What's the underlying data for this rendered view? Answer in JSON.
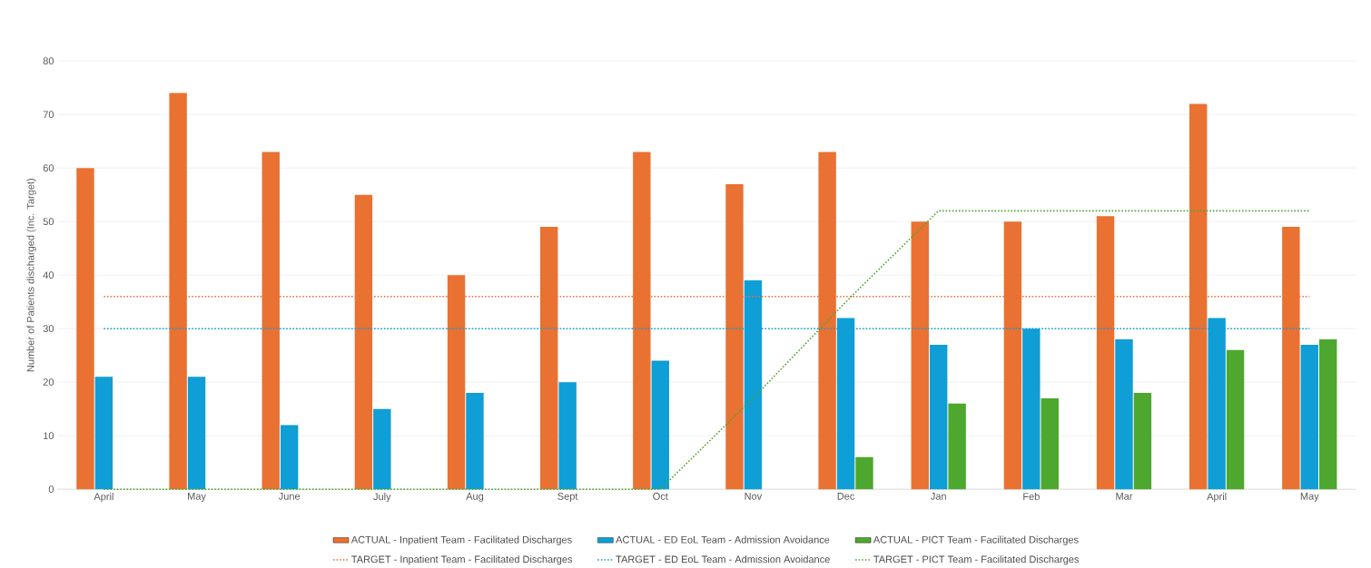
{
  "chart_data": {
    "type": "bar",
    "ylabel": "Number of Patients discharged (Inc. Target)",
    "categories": [
      "April",
      "May",
      "June",
      "July",
      "Aug",
      "Sept",
      "Oct",
      "Nov",
      "Dec",
      "Jan",
      "Feb",
      "Mar",
      "April",
      "May"
    ],
    "ylim": [
      0,
      80
    ],
    "yticks": [
      0,
      10,
      20,
      30,
      40,
      50,
      60,
      70,
      80
    ],
    "grid": "y",
    "legend": "bottom",
    "series": [
      {
        "name": "ACTUAL - Inpatient Team - Facilitated Discharges",
        "color": "#e97132",
        "values": [
          60,
          74,
          63,
          55,
          40,
          49,
          63,
          57,
          63,
          50,
          50,
          51,
          72,
          49
        ]
      },
      {
        "name": "ACTUAL - ED EoL Team - Admission Avoidance",
        "color": "#0f9ed5",
        "values": [
          21,
          21,
          12,
          15,
          18,
          20,
          24,
          39,
          32,
          27,
          30,
          28,
          32,
          27
        ]
      },
      {
        "name": "ACTUAL - PICT Team - Facilitated Discharges",
        "color": "#4ea72e",
        "values": [
          null,
          null,
          null,
          null,
          null,
          null,
          null,
          null,
          6,
          16,
          17,
          18,
          26,
          28
        ]
      },
      {
        "name": "TARGET - Inpatient Team - Facilitated Discharges",
        "type": "line",
        "line_style": "dotted",
        "color": "#e97132",
        "values": [
          36,
          36,
          36,
          36,
          36,
          36,
          36,
          36,
          36,
          36,
          36,
          36,
          36,
          36
        ]
      },
      {
        "name": "TARGET - ED EoL Team - Admission Avoidance",
        "type": "line",
        "line_style": "dotted",
        "color": "#0f9ed5",
        "values": [
          30,
          30,
          30,
          30,
          30,
          30,
          30,
          30,
          30,
          30,
          30,
          30,
          30,
          30
        ]
      },
      {
        "name": "TARGET - PICT Team - Facilitated Discharges",
        "type": "line",
        "line_style": "dotted",
        "color": "#4ea72e",
        "values": [
          0,
          0,
          0,
          0,
          0,
          0,
          0,
          17,
          35,
          52,
          52,
          52,
          52,
          52
        ]
      }
    ]
  }
}
